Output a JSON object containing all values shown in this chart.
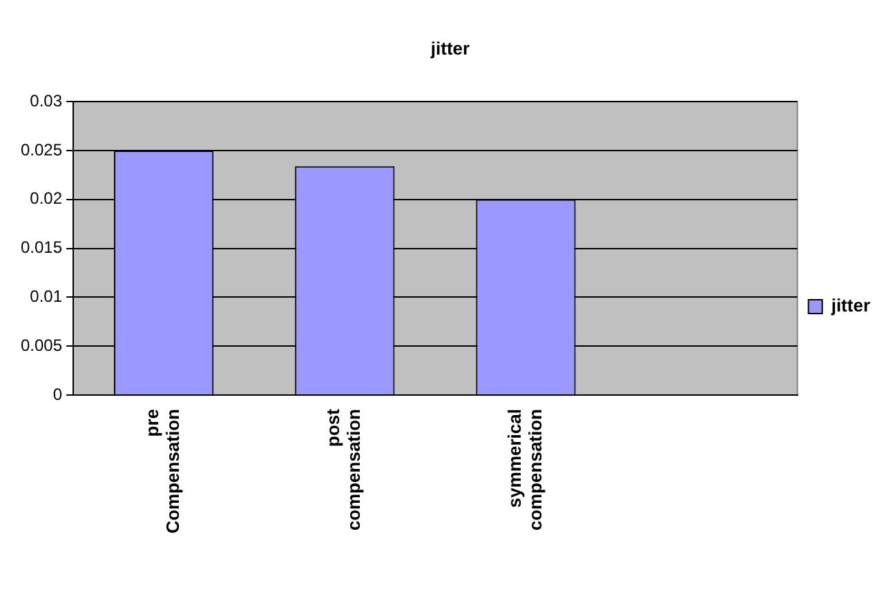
{
  "chart_data": {
    "type": "bar",
    "title": "jitter",
    "categories": [
      "pre Compensation",
      "post compensation",
      "symmerical compensation",
      null
    ],
    "series": [
      {
        "name": "jitter",
        "color": "#9999ff",
        "values": [
          0.025,
          0.0234,
          0.02,
          null
        ]
      }
    ],
    "ylim": [
      0,
      0.03
    ],
    "yticks": [
      0,
      0.005,
      0.01,
      0.015,
      0.02,
      0.025,
      0.03
    ],
    "grid": "y",
    "legend": "right"
  }
}
